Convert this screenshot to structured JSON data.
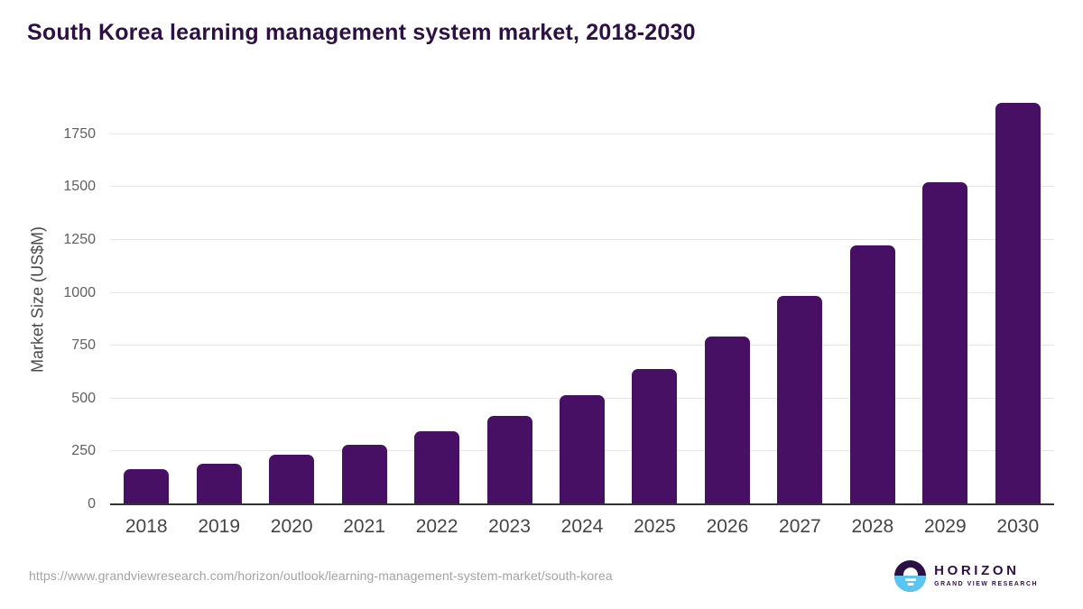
{
  "title": "South Korea learning management system market, 2018-2030",
  "chart_data": {
    "type": "bar",
    "title": "South Korea learning management system market, 2018-2030",
    "categories": [
      "2018",
      "2019",
      "2020",
      "2021",
      "2022",
      "2023",
      "2024",
      "2025",
      "2026",
      "2027",
      "2028",
      "2029",
      "2030"
    ],
    "values": [
      165,
      190,
      235,
      280,
      345,
      420,
      515,
      640,
      795,
      985,
      1225,
      1525,
      1900
    ],
    "xlabel": "",
    "ylabel": "Market Size (US$M)",
    "ylim": [
      0,
      1937
    ],
    "yticks": [
      0,
      250,
      500,
      750,
      1000,
      1250,
      1500,
      1750
    ],
    "grid": true,
    "legend": "none",
    "bar_color": "#481064",
    "gridline_color": "#e7e7ea",
    "baseline_color": "#333333",
    "ytick_color": "#606060",
    "xtick_color": "#454545",
    "axis_label_color": "#4a4a4a"
  },
  "colors": {
    "title": "#2e1144",
    "background": "#ffffff",
    "logo_purple": "#2e1144",
    "logo_blue": "#5ac5f0"
  },
  "footer": {
    "source_url": "https://www.grandviewresearch.com/horizon/outlook/learning-management-system-market/south-korea",
    "logo": {
      "brand": "HORIZON",
      "sub_brand": "GRAND VIEW RESEARCH"
    }
  }
}
